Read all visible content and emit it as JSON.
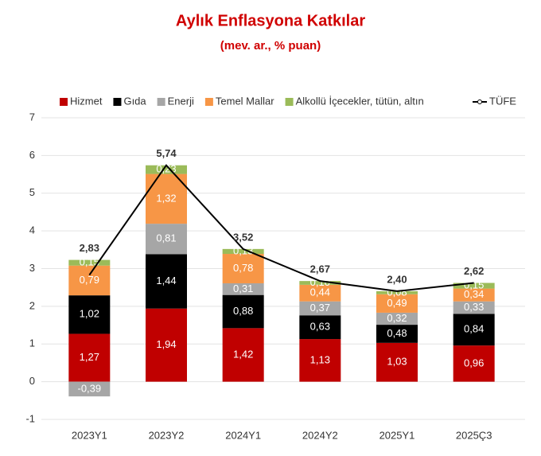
{
  "chart_data": {
    "type": "bar",
    "stacked": true,
    "title": "Aylık Enflasyona Katkılar",
    "subtitle": "(mev. ar., % puan)",
    "categories": [
      "2023Y1",
      "2023Y2",
      "2024Y1",
      "2024Y2",
      "2025Y1",
      "2025Ç3"
    ],
    "ylim": [
      -1,
      7
    ],
    "yticks": [
      -1,
      0,
      1,
      2,
      3,
      4,
      5,
      6,
      7
    ],
    "grid": true,
    "legend": "top",
    "series": [
      {
        "name": "Hizmet",
        "color": "#c00000",
        "type": "bar",
        "values": [
          1.27,
          1.94,
          1.42,
          1.13,
          1.03,
          0.96
        ],
        "value_labels": [
          "1,27",
          "1,94",
          "1,42",
          "1,13",
          "1,03",
          "0,96"
        ]
      },
      {
        "name": "Gıda",
        "color": "#000000",
        "type": "bar",
        "values": [
          1.02,
          1.44,
          0.88,
          0.63,
          0.48,
          0.84
        ],
        "value_labels": [
          "1,02",
          "1,44",
          "0,88",
          "0,63",
          "0,48",
          "0,84"
        ]
      },
      {
        "name": "Enerji",
        "color": "#a6a6a6",
        "type": "bar",
        "values": [
          -0.39,
          0.81,
          0.31,
          0.37,
          0.32,
          0.33
        ],
        "value_labels": [
          "-0,39",
          "0,81",
          "0,31",
          "0,37",
          "0,32",
          "0,33"
        ]
      },
      {
        "name": "Temel Mallar",
        "color": "#f79646",
        "type": "bar",
        "values": [
          0.79,
          1.32,
          0.78,
          0.44,
          0.49,
          0.34
        ],
        "value_labels": [
          "0,79",
          "1,32",
          "0,78",
          "0,44",
          "0,49",
          "0,34"
        ]
      },
      {
        "name": "Alkollü İçecekler, tütün, altın",
        "color": "#9bbb59",
        "type": "bar",
        "values": [
          0.15,
          0.23,
          0.13,
          0.1,
          0.08,
          0.15
        ],
        "value_labels": [
          "0,15",
          "0,23",
          "0,13",
          "0,10",
          "0,08",
          "0,15"
        ]
      },
      {
        "name": "TÜFE",
        "color": "#000000",
        "type": "line",
        "values": [
          2.83,
          5.74,
          3.52,
          2.67,
          2.4,
          2.62
        ],
        "value_labels": [
          "2,83",
          "5,74",
          "3,52",
          "2,67",
          "2,40",
          "2,62"
        ]
      }
    ]
  }
}
